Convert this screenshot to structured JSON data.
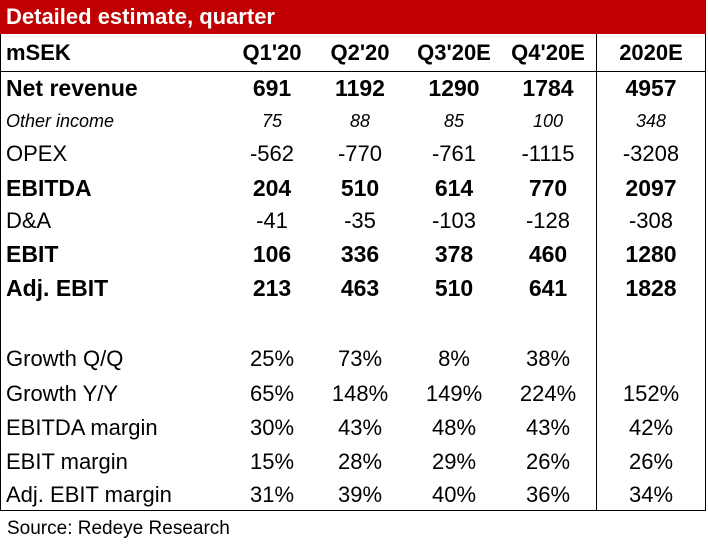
{
  "table": {
    "title": "Detailed estimate, quarter",
    "columns": [
      "mSEK",
      "Q1'20",
      "Q2'20",
      "Q3'20E",
      "Q4'20E",
      "2020E"
    ],
    "rows": [
      {
        "label": "Net revenue",
        "values": [
          "691",
          "1192",
          "1290",
          "1784",
          "4957"
        ]
      },
      {
        "label": "Other income",
        "values": [
          "75",
          "88",
          "85",
          "100",
          "348"
        ]
      },
      {
        "label": "OPEX",
        "values": [
          "-562",
          "-770",
          "-761",
          "-1115",
          "-3208"
        ]
      },
      {
        "label": "EBITDA",
        "values": [
          "204",
          "510",
          "614",
          "770",
          "2097"
        ]
      },
      {
        "label": "D&A",
        "values": [
          "-41",
          "-35",
          "-103",
          "-128",
          "-308"
        ]
      },
      {
        "label": "EBIT",
        "values": [
          "106",
          "336",
          "378",
          "460",
          "1280"
        ]
      },
      {
        "label": "Adj. EBIT",
        "values": [
          "213",
          "463",
          "510",
          "641",
          "1828"
        ]
      },
      {
        "label": "Growth Q/Q",
        "values": [
          "25%",
          "73%",
          "8%",
          "38%",
          ""
        ]
      },
      {
        "label": "Growth Y/Y",
        "values": [
          "65%",
          "148%",
          "149%",
          "224%",
          "152%"
        ]
      },
      {
        "label": "EBITDA margin",
        "values": [
          "30%",
          "43%",
          "48%",
          "43%",
          "42%"
        ]
      },
      {
        "label": "EBIT margin",
        "values": [
          "15%",
          "28%",
          "29%",
          "26%",
          "26%"
        ]
      },
      {
        "label": "Adj. EBIT margin",
        "values": [
          "31%",
          "39%",
          "40%",
          "36%",
          "34%"
        ]
      }
    ],
    "source": "Source: Redeye Research"
  },
  "colors": {
    "title_bg": "#c00000",
    "title_text": "#ffffff"
  }
}
